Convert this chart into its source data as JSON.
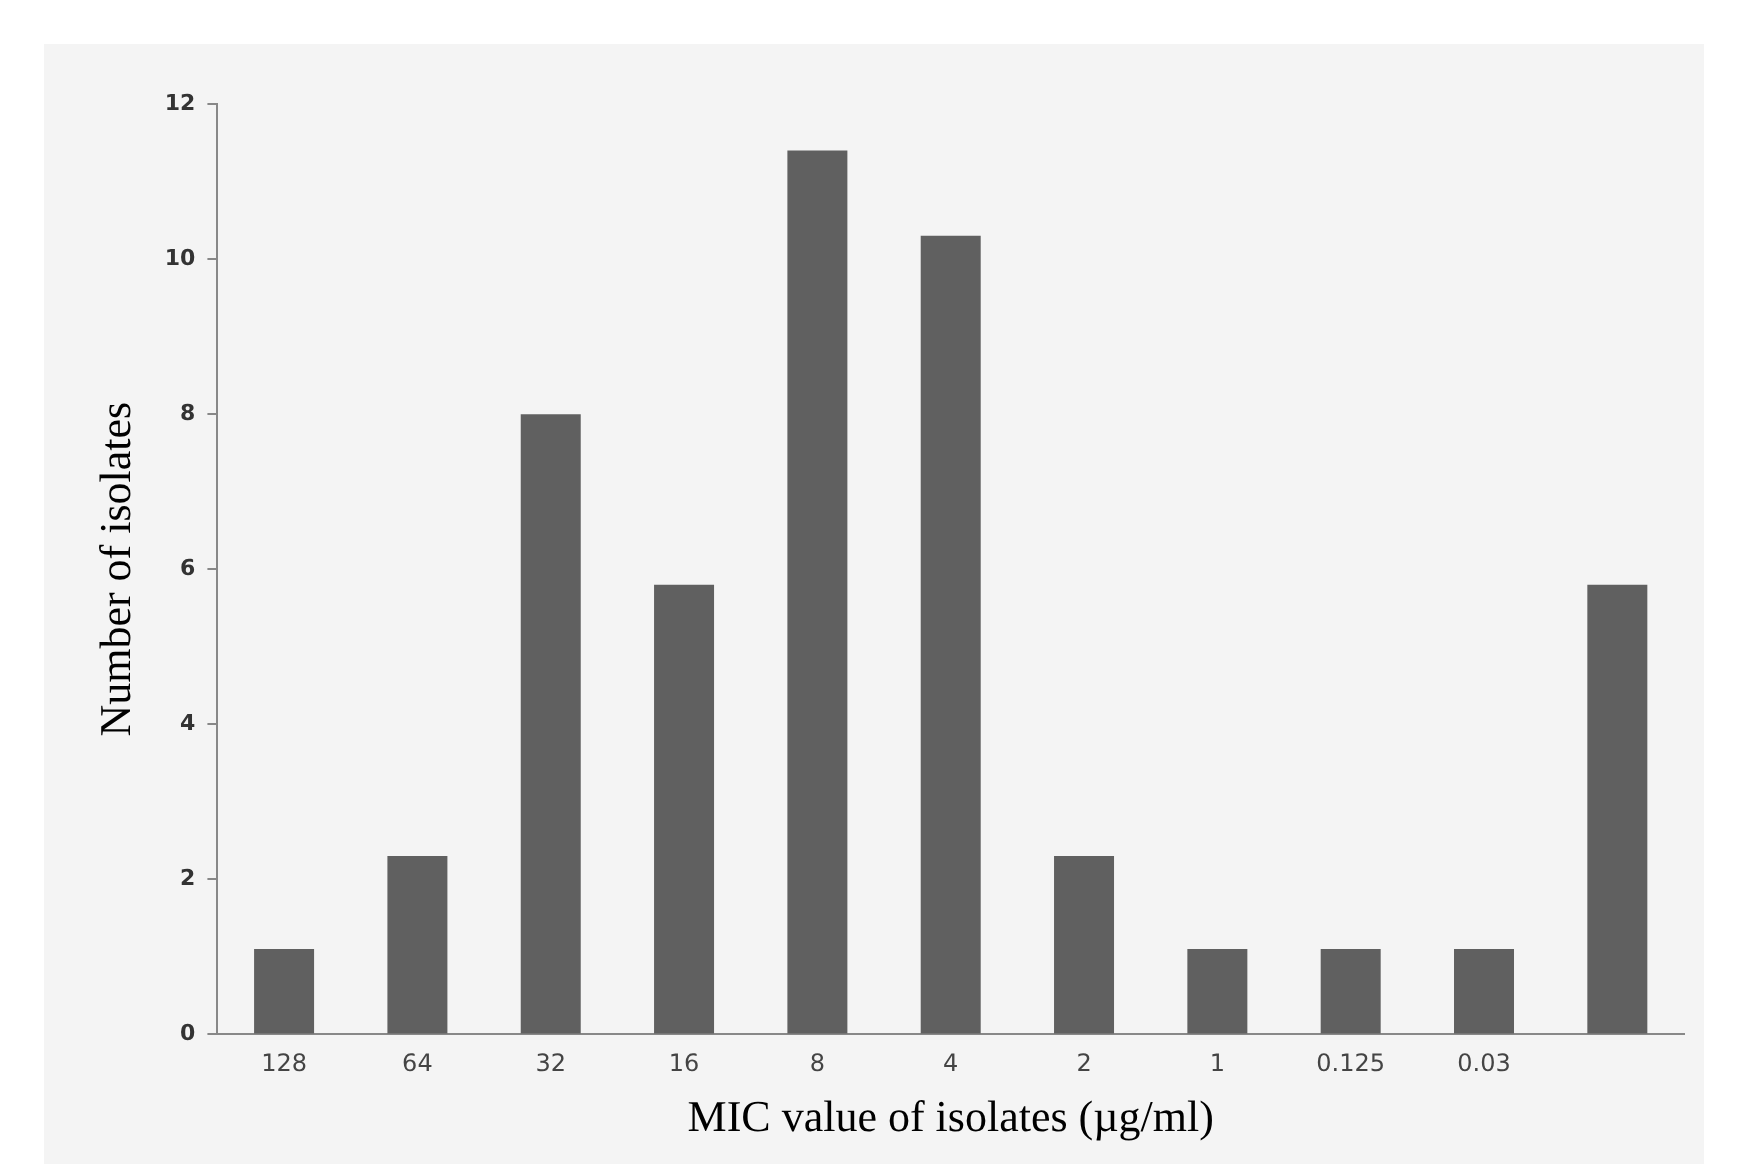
{
  "chart_data": {
    "type": "bar",
    "xlabel": "MIC value of isolates (µg/ml)",
    "ylabel": "Number of isolates",
    "categories": [
      "128",
      "64",
      "32",
      "16",
      "8",
      "4",
      "2",
      "1",
      "0.125",
      "0.03",
      null
    ],
    "values": [
      1.1,
      2.3,
      8,
      5.8,
      11.4,
      10.3,
      2.3,
      1.1,
      1.1,
      1.1,
      5.8
    ],
    "color": "#606060",
    "ylim": [
      0,
      12
    ],
    "yticks": [
      0,
      2,
      4,
      6,
      8,
      10,
      12
    ],
    "grid": false,
    "legend": false
  }
}
